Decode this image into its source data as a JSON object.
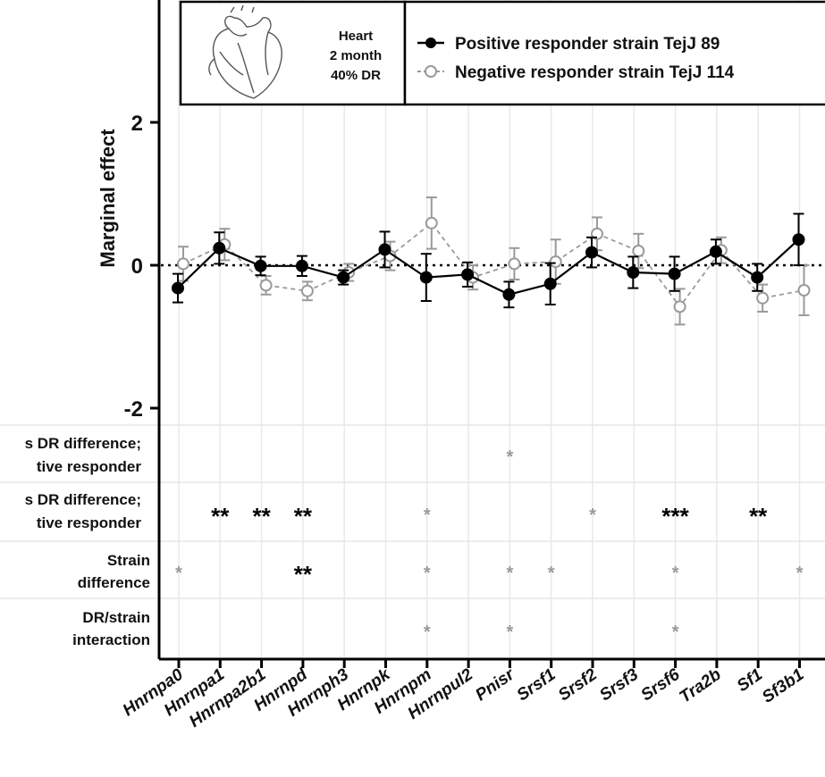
{
  "chart_data": {
    "type": "line",
    "ylabel": "Marginal effect",
    "ylim": [
      -2.6,
      3.8
    ],
    "yticks": [
      "-2",
      "0",
      "2"
    ],
    "grid": "vertical gridlines",
    "reference_line": 0,
    "legend_position": "top",
    "inset": {
      "icon": "heart-icon",
      "lines": [
        "Heart",
        "2 month",
        "40% DR"
      ]
    },
    "categories": [
      "Hnrnpa0",
      "Hnrnpa1",
      "Hnrnpa2b1",
      "Hnrnpd",
      "Hnrnph3",
      "Hnrnpk",
      "Hnrnpm",
      "Hnrnpul2",
      "Pnisr",
      "Srsf1",
      "Srsf2",
      "Srsf3",
      "Srsf6",
      "Tra2b",
      "Sf1",
      "Sf3b1"
    ],
    "series": [
      {
        "name": "Positive responder strain TejJ 89",
        "color": "#000000",
        "style": "solid line, filled circle",
        "values": [
          -0.32,
          0.24,
          -0.01,
          -0.01,
          -0.17,
          0.22,
          -0.17,
          -0.13,
          -0.41,
          -0.26,
          0.18,
          -0.1,
          -0.12,
          0.19,
          -0.17,
          0.36
        ],
        "errors": [
          0.2,
          0.22,
          0.13,
          0.14,
          0.1,
          0.25,
          0.33,
          0.17,
          0.18,
          0.29,
          0.21,
          0.22,
          0.24,
          0.17,
          0.19,
          0.36
        ]
      },
      {
        "name": "Negative responder strain TejJ 114",
        "color": "#9a9a9a",
        "style": "dashed line, open circle",
        "values": [
          0.02,
          0.29,
          -0.28,
          -0.36,
          -0.1,
          0.13,
          0.59,
          -0.17,
          0.02,
          0.05,
          0.44,
          0.2,
          -0.58,
          0.21,
          -0.46,
          -0.35
        ],
        "errors": [
          0.24,
          0.22,
          0.13,
          0.13,
          0.12,
          0.2,
          0.36,
          0.17,
          0.22,
          0.31,
          0.23,
          0.24,
          0.25,
          0.18,
          0.19,
          0.35
        ]
      }
    ],
    "significance_rows": [
      {
        "label": [
          "s DR difference;",
          "tive responder"
        ],
        "marks": [
          {
            "category": "Pnisr",
            "text": "*",
            "color": "#9a9a9a"
          }
        ]
      },
      {
        "label": [
          "s DR difference;",
          "tive responder"
        ],
        "marks": [
          {
            "category": "Hnrnpa1",
            "text": "**",
            "color": "#000000"
          },
          {
            "category": "Hnrnpa2b1",
            "text": "**",
            "color": "#000000"
          },
          {
            "category": "Hnrnpd",
            "text": "**",
            "color": "#000000"
          },
          {
            "category": "Hnrnpm",
            "text": "*",
            "color": "#9a9a9a"
          },
          {
            "category": "Srsf2",
            "text": "*",
            "color": "#9a9a9a"
          },
          {
            "category": "Srsf6",
            "text": "***",
            "color": "#000000"
          },
          {
            "category": "Sf1",
            "text": "**",
            "color": "#000000"
          }
        ]
      },
      {
        "label": [
          "Strain",
          "difference"
        ],
        "marks": [
          {
            "category": "Hnrnpa0",
            "text": "*",
            "color": "#9a9a9a"
          },
          {
            "category": "Hnrnpd",
            "text": "**",
            "color": "#000000"
          },
          {
            "category": "Hnrnpm",
            "text": "*",
            "color": "#9a9a9a"
          },
          {
            "category": "Pnisr",
            "text": "*",
            "color": "#9a9a9a"
          },
          {
            "category": "Srsf1",
            "text": "*",
            "color": "#9a9a9a"
          },
          {
            "category": "Srsf6",
            "text": "*",
            "color": "#9a9a9a"
          },
          {
            "category": "Sf3b1",
            "text": "*",
            "color": "#9a9a9a"
          }
        ]
      },
      {
        "label": [
          "DR/strain",
          "interaction"
        ],
        "marks": [
          {
            "category": "Hnrnpm",
            "text": "*",
            "color": "#9a9a9a"
          },
          {
            "category": "Pnisr",
            "text": "*",
            "color": "#9a9a9a"
          },
          {
            "category": "Srsf6",
            "text": "*",
            "color": "#9a9a9a"
          }
        ]
      }
    ]
  }
}
